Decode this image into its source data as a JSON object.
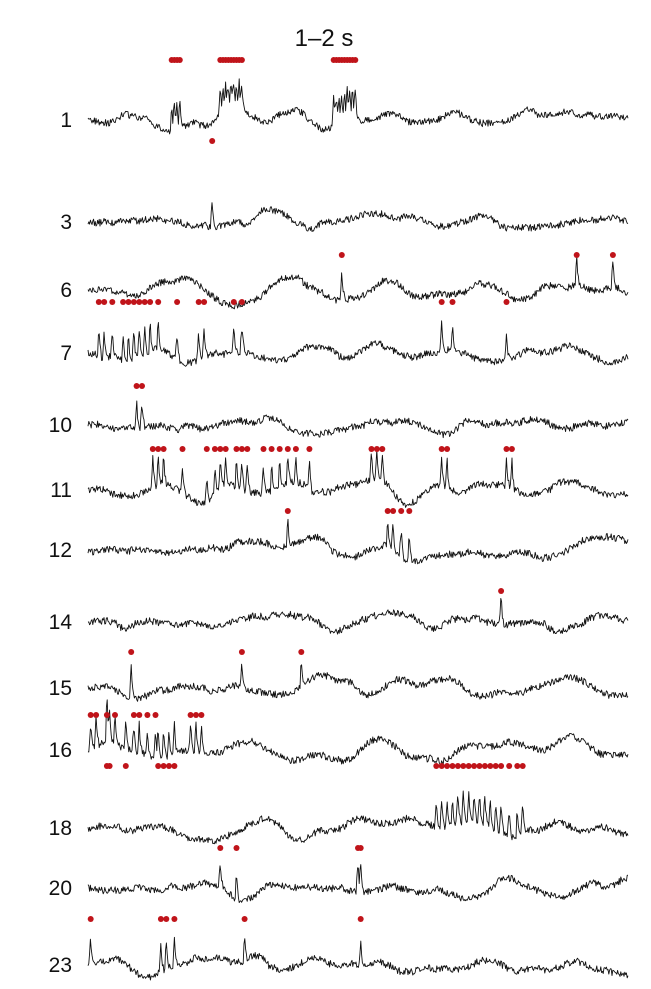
{
  "chart_data": {
    "type": "line",
    "title": "1–2 s",
    "xlabel": "",
    "ylabel": "",
    "grid": false,
    "legend": "none",
    "colors": {
      "trace": "#111111",
      "spike_marker": "#c0141a"
    },
    "x_range": [
      0,
      1
    ],
    "series": [
      {
        "label": "1",
        "level": 120,
        "spikes": [
          0.155,
          0.16,
          0.165,
          0.17,
          0.245,
          0.25,
          0.255,
          0.26,
          0.265,
          0.27,
          0.275,
          0.28,
          0.285,
          0.455,
          0.46,
          0.465,
          0.47,
          0.475,
          0.48,
          0.485,
          0.49,
          0.495
        ]
      },
      {
        "label": "3",
        "level": 222,
        "spikes": [
          0.23
        ]
      },
      {
        "label": "6",
        "level": 290,
        "spikes": [
          0.47,
          0.905,
          0.972
        ]
      },
      {
        "label": "7",
        "level": 353,
        "spikes": [
          0.02,
          0.03,
          0.045,
          0.065,
          0.075,
          0.085,
          0.095,
          0.105,
          0.115,
          0.13,
          0.165,
          0.205,
          0.215,
          0.27,
          0.285,
          0.655,
          0.675,
          0.775
        ]
      },
      {
        "label": "10",
        "level": 425,
        "spikes": [
          0.09,
          0.1
        ]
      },
      {
        "label": "11",
        "level": 490,
        "spikes": [
          0.12,
          0.13,
          0.14,
          0.175,
          0.22,
          0.235,
          0.245,
          0.255,
          0.275,
          0.285,
          0.295,
          0.325,
          0.34,
          0.355,
          0.37,
          0.385,
          0.41,
          0.525,
          0.535,
          0.545,
          0.655,
          0.665,
          0.775,
          0.785
        ]
      },
      {
        "label": "12",
        "level": 550,
        "spikes": [
          0.37,
          0.555,
          0.565,
          0.58,
          0.595
        ]
      },
      {
        "label": "14",
        "level": 622,
        "spikes": [
          0.765
        ]
      },
      {
        "label": "15",
        "level": 688,
        "spikes": [
          0.08,
          0.285,
          0.395
        ]
      },
      {
        "label": "16",
        "level": 750,
        "spikes": [
          0.005,
          0.015,
          0.035,
          0.05,
          0.085,
          0.095,
          0.11,
          0.125,
          0.19,
          0.2,
          0.21,
          0.035,
          0.04,
          0.07,
          0.13,
          0.14,
          0.15,
          0.16
        ]
      },
      {
        "label": "18",
        "level": 828,
        "spikes": [
          0.645,
          0.655,
          0.665,
          0.675,
          0.685,
          0.695,
          0.705,
          0.715,
          0.725,
          0.735,
          0.745,
          0.755,
          0.765,
          0.78,
          0.795,
          0.805
        ]
      },
      {
        "label": "20",
        "level": 888,
        "spikes": [
          0.245,
          0.275,
          0.5,
          0.505
        ]
      },
      {
        "label": "23",
        "level": 965,
        "spikes": [
          0.005,
          0.135,
          0.145,
          0.16,
          0.29,
          0.505
        ]
      }
    ]
  }
}
